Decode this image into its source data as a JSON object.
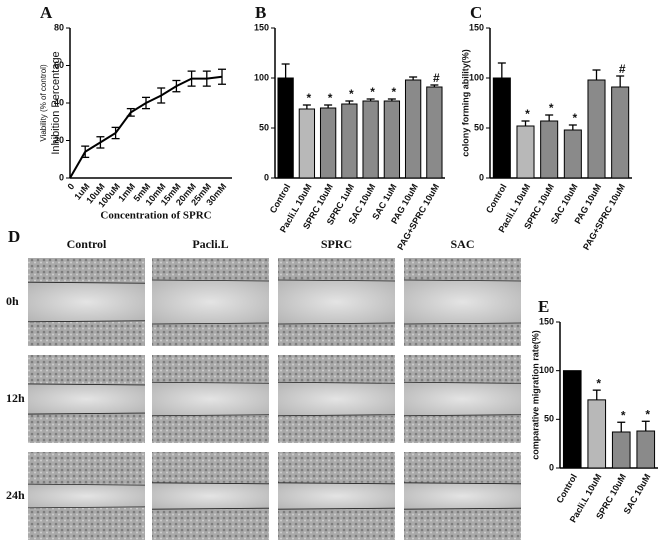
{
  "chart_data": [
    {
      "type": "line",
      "panel": "A",
      "ylabel": "Inhibition Percentage",
      "ylabel2": "Viability (% of control)",
      "xlabel": "Concentration of SPRC",
      "categories": [
        "0",
        "1uM",
        "10uM",
        "100uM",
        "1mM",
        "5mM",
        "10mM",
        "15mM",
        "20mM",
        "25mM",
        "30mM"
      ],
      "values": [
        0,
        14,
        19,
        24,
        35,
        40,
        44,
        49,
        53,
        53,
        54
      ],
      "errors": [
        0,
        3,
        3,
        3,
        2,
        3,
        4,
        3,
        4,
        4,
        4
      ],
      "color": "#000000",
      "ylim": [
        0,
        80
      ],
      "yticks": [
        0,
        20,
        40,
        60,
        80
      ]
    },
    {
      "type": "bar",
      "panel": "B",
      "categories": [
        "Control",
        "Pacli.L 10uM",
        "SPRC 10uM",
        "SPRC 1uM",
        "SAC 10uM",
        "SAC 1uM",
        "PAG 10uM",
        "PAG+SPRC 10uM"
      ],
      "values": [
        100,
        69,
        70,
        74,
        77,
        77,
        98,
        91
      ],
      "errors": [
        14,
        4,
        3,
        3,
        2,
        2,
        3,
        2
      ],
      "markers": [
        null,
        "*",
        "*",
        "*",
        "*",
        "*",
        null,
        "#"
      ],
      "colors": [
        "#000000",
        "#b8b8b8",
        "#8a8a8a",
        "#8a8a8a",
        "#8a8a8a",
        "#8a8a8a",
        "#8a8a8a",
        "#8a8a8a"
      ],
      "ylim": [
        0,
        150
      ],
      "yticks": [
        0,
        50,
        100,
        150
      ]
    },
    {
      "type": "bar",
      "panel": "C",
      "ylabel": "colony forming ability(%)",
      "categories": [
        "Control",
        "Pacli.L 10uM",
        "SPRC 10uM",
        "SAC 10uM",
        "PAG 10uM",
        "PAG+SPRC 10uM"
      ],
      "values": [
        100,
        52,
        57,
        48,
        98,
        91
      ],
      "errors": [
        15,
        5,
        6,
        5,
        10,
        11
      ],
      "markers": [
        null,
        "*",
        "*",
        "*",
        null,
        "#"
      ],
      "colors": [
        "#000000",
        "#b8b8b8",
        "#8a8a8a",
        "#8a8a8a",
        "#8a8a8a",
        "#8a8a8a"
      ],
      "ylim": [
        0,
        150
      ],
      "yticks": [
        0,
        50,
        100,
        150
      ]
    },
    {
      "type": "bar",
      "panel": "E",
      "ylabel": "comparative migration rate(%)",
      "categories": [
        "Control",
        "Pacli.L 10uM",
        "SPRC 10uM",
        "SAC 10uM"
      ],
      "values": [
        100,
        70,
        37,
        38
      ],
      "errors": [
        0,
        10,
        10,
        10
      ],
      "markers": [
        null,
        "*",
        "*",
        "*"
      ],
      "colors": [
        "#000000",
        "#b8b8b8",
        "#8a8a8a",
        "#8a8a8a"
      ],
      "ylim": [
        0,
        150
      ],
      "yticks": [
        0,
        50,
        100,
        150
      ]
    }
  ],
  "panel_d": {
    "panel": "D",
    "columns": [
      "Control",
      "Pacli.L",
      "SPRC",
      "SAC"
    ],
    "rows": [
      "0h",
      "12h",
      "24h"
    ]
  }
}
